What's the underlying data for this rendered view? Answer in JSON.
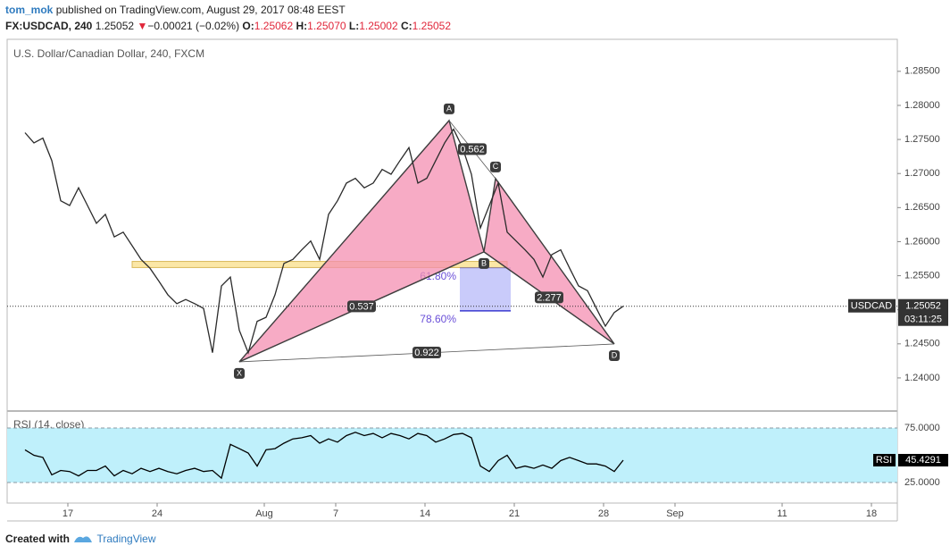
{
  "header": {
    "author": "tom_mok",
    "published": "published on TradingView.com, August 29, 2017 08:48 EEST",
    "symbol": "FX:USDCAD, 240",
    "last": "1.25052",
    "arrow": "▼",
    "change": "−0.00021 (−0.02%)",
    "o_label": "O:",
    "o": "1.25062",
    "h_label": "H:",
    "h": "1.25070",
    "l_label": "L:",
    "l": "1.25002",
    "c_label": "C:",
    "c": "1.25052"
  },
  "footer": {
    "created": "Created with",
    "brand": "TradingView"
  },
  "chart_data": [
    {
      "type": "line",
      "title": "U.S. Dollar/Canadian Dollar, 240, FXCM",
      "x": [
        -2.4,
        -1.9,
        -1.4,
        -0.9,
        -0.4,
        0.1,
        0.6,
        1.1,
        1.6,
        2.1,
        2.6,
        3.1,
        3.6,
        4.1,
        4.6,
        5.1,
        5.6,
        6.1,
        6.6,
        7.1,
        7.6,
        8.1,
        8.6,
        9.1,
        9.6,
        10.1,
        10.6,
        11.1,
        11.6,
        12.1,
        12.6,
        13.1,
        13.6,
        14.1,
        14.6,
        15.1,
        15.6,
        16.1,
        16.6,
        17.1,
        17.6,
        18.1,
        18.6,
        19.1,
        19.6,
        20.1,
        20.6,
        21.1,
        21.6,
        22.1,
        22.6,
        23.1,
        23.6,
        24.1,
        24.6,
        25.1,
        25.6,
        26.1,
        26.6,
        27.1,
        27.6,
        28.1,
        28.6,
        29.1,
        29.6,
        30.1,
        30.6,
        31.1
      ],
      "series": [
        {
          "name": "USDCAD",
          "color": "#2b2b2b",
          "values": [
            1.276,
            1.2745,
            1.2752,
            1.2719,
            1.266,
            1.2653,
            1.2679,
            1.2653,
            1.2627,
            1.264,
            1.2607,
            1.2614,
            1.2594,
            1.2574,
            1.2561,
            1.2542,
            1.2522,
            1.2509,
            1.2515,
            1.2509,
            1.2502,
            1.2437,
            1.2535,
            1.2548,
            1.247,
            1.2437,
            1.2483,
            1.2489,
            1.2522,
            1.2568,
            1.2574,
            1.2588,
            1.2601,
            1.2574,
            1.264,
            1.266,
            1.2686,
            1.2693,
            1.2679,
            1.2686,
            1.2706,
            1.2699,
            1.2719,
            1.2738,
            1.2686,
            1.2693,
            1.2719,
            1.2745,
            1.2765,
            1.2738,
            1.2699,
            1.262,
            1.2653,
            1.2686,
            1.2614,
            1.2601,
            1.2588,
            1.2574,
            1.2548,
            1.2581,
            1.2588,
            1.2561,
            1.2535,
            1.2528,
            1.2502,
            1.2476,
            1.2496,
            1.25052
          ]
        }
      ],
      "countdown": "03:11:25",
      "xlim": [
        -3.4,
        46.45
      ],
      "ylim": [
        1.2354,
        1.2897
      ],
      "yticks": [
        {
          "value": 1.285,
          "label": "1.28500"
        },
        {
          "value": 1.28,
          "label": "1.28000"
        },
        {
          "value": 1.275,
          "label": "1.27500"
        },
        {
          "value": 1.27,
          "label": "1.27000"
        },
        {
          "value": 1.265,
          "label": "1.26500"
        },
        {
          "value": 1.26,
          "label": "1.26000"
        },
        {
          "value": 1.255,
          "label": "1.25500"
        },
        {
          "value": 1.25,
          "label": "1.25000"
        },
        {
          "value": 1.245,
          "label": "1.24500"
        },
        {
          "value": 1.24,
          "label": "1.24000"
        }
      ],
      "pattern": {
        "color": "#f48fb1",
        "points": [
          {
            "label": "X",
            "x": 9.6,
            "y": 1.24236
          },
          {
            "label": "A",
            "x": 21.35,
            "y": 1.27778
          },
          {
            "label": "B",
            "x": 23.3,
            "y": 1.2585
          },
          {
            "label": "C",
            "x": 23.95,
            "y": 1.26926
          },
          {
            "label": "D",
            "x": 30.6,
            "y": 1.24498
          }
        ],
        "ratios": [
          "0.562",
          "0.537",
          "0.922",
          "2.277"
        ]
      },
      "zone": {
        "color": "#fbe7a6",
        "xlim": [
          3.6,
          24.6
        ],
        "ylim": [
          1.2562,
          1.2571
        ]
      },
      "fib_box": {
        "color": "#c9cbfa",
        "xlim": [
          21.95,
          24.8
        ],
        "levels": [
          {
            "label": "61.80%",
            "y": 1.25614
          },
          {
            "label": "78.60%",
            "y": 1.24984
          }
        ]
      }
    },
    {
      "type": "line",
      "title": "RSI (14, close)",
      "x": [
        -2.4,
        -1.9,
        -1.4,
        -0.9,
        -0.4,
        0.1,
        0.6,
        1.1,
        1.6,
        2.1,
        2.6,
        3.1,
        3.6,
        4.1,
        4.6,
        5.1,
        5.6,
        6.1,
        6.6,
        7.1,
        7.6,
        8.1,
        8.6,
        9.1,
        9.6,
        10.1,
        10.6,
        11.1,
        11.6,
        12.1,
        12.6,
        13.1,
        13.6,
        14.1,
        14.6,
        15.1,
        15.6,
        16.1,
        16.6,
        17.1,
        17.6,
        18.1,
        18.6,
        19.1,
        19.6,
        20.1,
        20.6,
        21.1,
        21.6,
        22.1,
        22.6,
        23.1,
        23.6,
        24.1,
        24.6,
        25.1,
        25.6,
        26.1,
        26.6,
        27.1,
        27.6,
        28.1,
        28.6,
        29.1,
        29.6,
        30.1,
        30.6,
        31.1
      ],
      "series": [
        {
          "name": "RSI",
          "color": "#000000",
          "values": [
            55,
            50,
            48,
            32,
            36,
            35,
            31,
            36,
            36,
            40,
            31,
            36,
            33,
            38,
            35,
            38,
            35,
            33,
            36,
            38,
            35,
            36,
            29,
            60,
            56,
            52,
            40,
            55,
            56,
            61,
            65,
            66,
            68,
            61,
            65,
            62,
            68,
            71,
            68,
            70,
            66,
            70,
            68,
            65,
            70,
            68,
            62,
            65,
            69,
            70,
            66,
            40,
            35,
            45,
            50,
            38,
            40,
            38,
            41,
            38,
            45,
            48,
            45,
            42,
            42,
            40,
            35,
            45.4291
          ]
        }
      ],
      "band_color": "#bff0fb",
      "xlim": [
        -3.4,
        46.45
      ],
      "ylim": [
        6.1,
        88.9
      ],
      "yticks": [
        {
          "value": 75,
          "label": "75.0000"
        },
        {
          "value": 25,
          "label": "25.0000"
        }
      ],
      "xticks": [
        {
          "value": 0,
          "label": "17"
        },
        {
          "value": 5,
          "label": "24"
        },
        {
          "value": 11,
          "label": "Aug"
        },
        {
          "value": 15,
          "label": "7"
        },
        {
          "value": 20,
          "label": "14"
        },
        {
          "value": 25,
          "label": "21"
        },
        {
          "value": 30,
          "label": "28"
        },
        {
          "value": 34,
          "label": "Sep"
        },
        {
          "value": 40,
          "label": "11"
        },
        {
          "value": 45,
          "label": "18"
        }
      ]
    }
  ]
}
